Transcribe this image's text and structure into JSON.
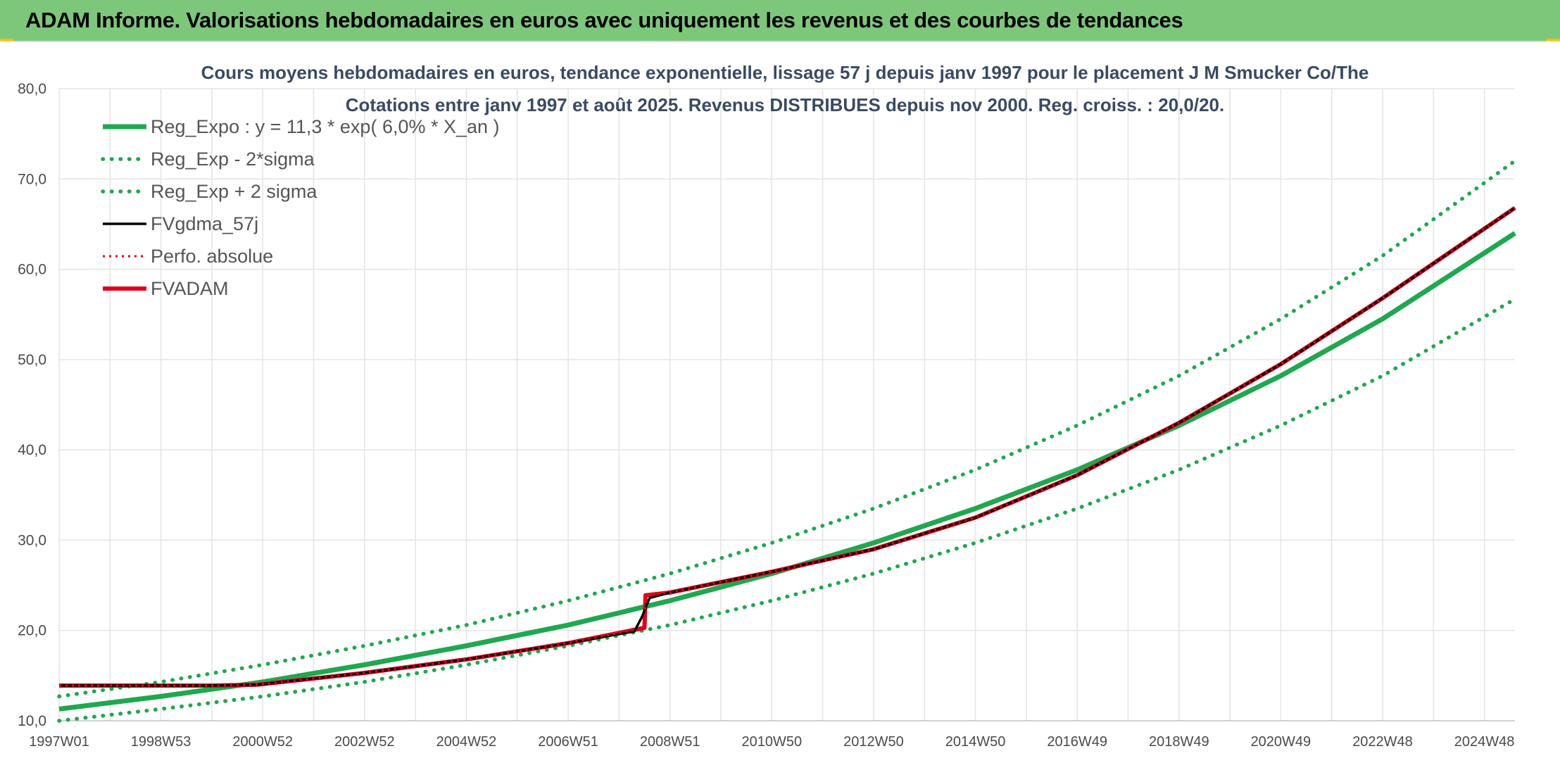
{
  "banner": {
    "title": "ADAM Informe. Valorisations hebdomadaires en euros avec uniquement les revenus et des courbes de tendances",
    "background": "#7dc77b"
  },
  "chart_data": {
    "type": "line",
    "title_line1": "Cours moyens hebdomadaires en euros, tendance exponentielle, lissage 57 j depuis janv 1997 pour le placement J M Smucker Co/The",
    "title_line2": "Cotations entre janv 1997 et août 2025. Revenus DISTRIBUES depuis nov 2000. Reg. croiss. : 20,0/20.",
    "xlabel": "",
    "ylabel": "",
    "ylim": [
      10,
      80
    ],
    "yticks": [
      "80,0",
      "70,0",
      "60,0",
      "50,0",
      "40,0",
      "30,0",
      "20,0",
      "10,0"
    ],
    "xlim": [
      1997.0,
      2025.6
    ],
    "xticks": [
      "1997W01",
      "1998W53",
      "2000W52",
      "2002W52",
      "2004W52",
      "2006W51",
      "2008W51",
      "2010W50",
      "2012W50",
      "2014W50",
      "2016W49",
      "2018W49",
      "2020W49",
      "2022W48",
      "2024W48"
    ],
    "grid": true,
    "legend_position": "top-left",
    "series": [
      {
        "name": "Reg_Expo : y = 11,3 * exp( 6,0% *  X_an )",
        "color": "#1fa84f",
        "style": "solid",
        "x": [
          1997.0,
          1999.0,
          2001.0,
          2003.0,
          2005.0,
          2007.0,
          2009.0,
          2011.0,
          2013.0,
          2015.0,
          2017.0,
          2019.0,
          2021.0,
          2023.0,
          2025.6
        ],
        "values": [
          11.3,
          12.7,
          14.3,
          16.2,
          18.3,
          20.6,
          23.3,
          26.3,
          29.7,
          33.5,
          37.8,
          42.7,
          48.2,
          54.5,
          64.0
        ]
      },
      {
        "name": "Reg_Exp - 2*sigma",
        "color": "#1fa84f",
        "style": "dotted",
        "x": [
          1997.0,
          1999.0,
          2001.0,
          2003.0,
          2005.0,
          2007.0,
          2009.0,
          2011.0,
          2013.0,
          2015.0,
          2017.0,
          2019.0,
          2021.0,
          2023.0,
          2025.6
        ],
        "values": [
          10.0,
          11.3,
          12.7,
          14.3,
          16.2,
          18.3,
          20.6,
          23.3,
          26.3,
          29.7,
          33.5,
          37.8,
          42.7,
          48.2,
          56.7
        ]
      },
      {
        "name": "Reg_Exp + 2 sigma",
        "color": "#1fa84f",
        "style": "dotted",
        "x": [
          1997.0,
          1999.0,
          2001.0,
          2003.0,
          2005.0,
          2007.0,
          2009.0,
          2011.0,
          2013.0,
          2015.0,
          2017.0,
          2019.0,
          2021.0,
          2023.0,
          2025.6
        ],
        "values": [
          12.7,
          14.3,
          16.2,
          18.3,
          20.6,
          23.3,
          26.3,
          29.7,
          33.5,
          37.8,
          42.7,
          48.2,
          54.5,
          61.5,
          72.0
        ]
      },
      {
        "name": "FVgdma_57j",
        "color": "#000000",
        "style": "solid",
        "x": [
          1997.0,
          2000.0,
          2000.9,
          2003.0,
          2005.0,
          2007.0,
          2008.3,
          2008.45,
          2008.6,
          2009.0,
          2011.0,
          2013.0,
          2015.0,
          2017.0,
          2019.0,
          2021.0,
          2023.0,
          2025.6
        ],
        "values": [
          13.9,
          13.9,
          14.0,
          15.3,
          16.8,
          18.6,
          19.9,
          21.5,
          23.6,
          24.2,
          26.5,
          29.0,
          32.5,
          37.2,
          43.0,
          49.5,
          56.8,
          66.8
        ]
      },
      {
        "name": "Perfo. absolue",
        "color": "#e3001b",
        "style": "dotted",
        "x": [
          1997.0,
          2000.0,
          2000.9,
          2003.0,
          2005.0,
          2007.0,
          2008.5,
          2008.52,
          2009.0,
          2011.0,
          2013.0,
          2015.0,
          2017.0,
          2019.0,
          2021.0,
          2023.0,
          2025.6
        ],
        "values": [
          13.9,
          13.9,
          14.0,
          15.3,
          16.8,
          18.6,
          20.3,
          23.9,
          24.2,
          26.5,
          29.0,
          32.5,
          37.2,
          43.0,
          49.5,
          56.8,
          66.8
        ]
      },
      {
        "name": "FVADAM",
        "color": "#e3001b",
        "style": "solid",
        "x": [
          1997.0,
          2000.0,
          2000.9,
          2003.0,
          2005.0,
          2007.0,
          2008.5,
          2008.52,
          2009.0,
          2011.0,
          2013.0,
          2015.0,
          2017.0,
          2019.0,
          2021.0,
          2023.0,
          2025.6
        ],
        "values": [
          13.9,
          13.9,
          14.0,
          15.3,
          16.8,
          18.6,
          20.3,
          23.9,
          24.2,
          26.5,
          29.0,
          32.5,
          37.2,
          43.0,
          49.5,
          56.8,
          66.8
        ]
      }
    ]
  }
}
